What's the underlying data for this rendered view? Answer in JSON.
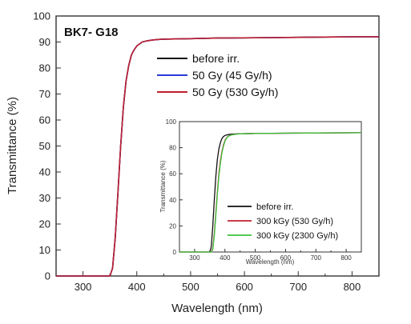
{
  "chart_data": [
    {
      "type": "line",
      "title": "BK7- G18",
      "xlabel": "Wavelength (nm)",
      "ylabel": "Transmittance (%)",
      "xlim": [
        250,
        850
      ],
      "ylim": [
        0,
        100
      ],
      "xticks": [
        "300",
        "400",
        "500",
        "600",
        "700",
        "800"
      ],
      "yticks": [
        "0",
        "10",
        "20",
        "30",
        "40",
        "50",
        "60",
        "70",
        "80",
        "90",
        "100"
      ],
      "legend_position": "top-right",
      "series": [
        {
          "name": "before irr.",
          "color": "#111111",
          "x": [
            250,
            340,
            350,
            355,
            360,
            365,
            370,
            375,
            380,
            385,
            390,
            395,
            400,
            410,
            420,
            430,
            440,
            450,
            500,
            550,
            600,
            650,
            700,
            750,
            800,
            850
          ],
          "y": [
            0,
            0,
            0,
            3,
            15,
            32,
            50,
            65,
            75,
            81,
            85,
            87,
            88.5,
            90,
            90.5,
            90.8,
            91,
            91.1,
            91.3,
            91.5,
            91.6,
            91.7,
            91.8,
            91.9,
            92,
            92
          ]
        },
        {
          "name": "50 Gy (45 Gy/h)",
          "color": "#2b3bd6",
          "x": [
            250,
            340,
            350,
            355,
            360,
            365,
            370,
            375,
            380,
            385,
            390,
            395,
            400,
            410,
            420,
            430,
            440,
            450,
            500,
            550,
            600,
            650,
            700,
            750,
            800,
            850
          ],
          "y": [
            0,
            0,
            0,
            3,
            15,
            32,
            50,
            65,
            75,
            81,
            85,
            87,
            88.5,
            90,
            90.5,
            90.8,
            91,
            91.1,
            91.3,
            91.5,
            91.6,
            91.7,
            91.8,
            91.9,
            92,
            92
          ]
        },
        {
          "name": "50 Gy (530 Gy/h)",
          "color": "#c0202f",
          "x": [
            250,
            340,
            350,
            355,
            360,
            365,
            370,
            375,
            380,
            385,
            390,
            395,
            400,
            410,
            420,
            430,
            440,
            450,
            500,
            550,
            600,
            650,
            700,
            750,
            800,
            850
          ],
          "y": [
            0,
            0,
            0,
            3,
            15,
            32,
            50,
            65,
            75,
            81,
            85,
            87,
            88.5,
            90,
            90.5,
            90.8,
            91,
            91.1,
            91.3,
            91.5,
            91.6,
            91.7,
            91.8,
            91.9,
            92,
            92
          ]
        }
      ]
    },
    {
      "type": "line",
      "title": "",
      "xlabel": "Wavelength (nm)",
      "ylabel": "Transmittance (%)",
      "xlim": [
        250,
        850
      ],
      "ylim": [
        0,
        100
      ],
      "xticks": [
        "300",
        "400",
        "500",
        "600",
        "700",
        "800"
      ],
      "yticks": [
        "0",
        "20",
        "40",
        "60",
        "80",
        "100"
      ],
      "legend_position": "bottom-right",
      "series": [
        {
          "name": "before irr.",
          "color": "#111111",
          "x": [
            250,
            345,
            350,
            355,
            360,
            365,
            370,
            375,
            380,
            385,
            390,
            395,
            400,
            410,
            420,
            430,
            450,
            500,
            600,
            700,
            800,
            850
          ],
          "y": [
            0,
            0,
            0,
            4,
            20,
            40,
            58,
            71,
            79,
            84,
            87,
            88.5,
            89.3,
            90,
            90.3,
            90.5,
            90.7,
            90.9,
            91.1,
            91.3,
            91.4,
            91.5
          ]
        },
        {
          "name": "300 kGy (530 Gy/h)",
          "color": "#c0202f",
          "x": [
            250,
            355,
            360,
            365,
            370,
            375,
            380,
            385,
            390,
            395,
            400,
            405,
            410,
            420,
            430,
            440,
            450,
            500,
            600,
            700,
            800,
            850
          ],
          "y": [
            0,
            0,
            3,
            14,
            30,
            46,
            60,
            70,
            77,
            82,
            85.5,
            87.5,
            88.7,
            89.8,
            90.2,
            90.5,
            90.6,
            90.9,
            91.1,
            91.3,
            91.4,
            91.5
          ]
        },
        {
          "name": "300 kGy (2300 Gy/h)",
          "color": "#3cc23c",
          "x": [
            250,
            355,
            360,
            365,
            370,
            375,
            380,
            385,
            390,
            395,
            400,
            405,
            410,
            420,
            430,
            440,
            450,
            500,
            600,
            700,
            800,
            850
          ],
          "y": [
            0,
            0,
            2,
            12,
            28,
            44,
            58,
            68,
            76,
            81,
            85,
            87.2,
            88.5,
            89.7,
            90.1,
            90.4,
            90.6,
            90.9,
            91.1,
            91.3,
            91.4,
            91.5
          ]
        }
      ]
    }
  ]
}
